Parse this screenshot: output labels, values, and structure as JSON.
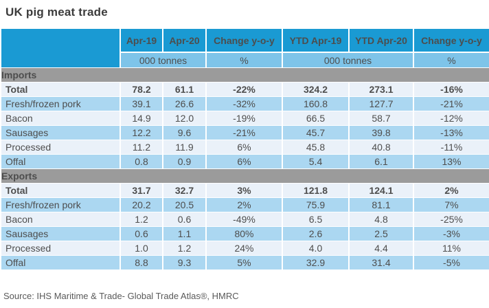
{
  "title": "UK pig meat trade",
  "source": "Source: IHS Maritime & Trade- Global Trade Atlas®, HMRC",
  "colors": {
    "header_blue": "#1A9AD3",
    "units_blue": "#7EC4E9",
    "row_blue": "#ABD7F1",
    "row_pale": "#EAF1F9",
    "section_gray": "#9B9B9B",
    "text_dark": "#4D4D4D"
  },
  "chart_data": {
    "type": "table",
    "title": "UK pig meat trade",
    "columns": [
      "Apr-19",
      "Apr-20",
      "Change y-o-y",
      "YTD Apr-19",
      "YTD Apr-20",
      "Change y-o-y"
    ],
    "units": [
      "000 tonnes",
      "%",
      "000 tonnes",
      "%"
    ],
    "sections": [
      {
        "name": "Imports",
        "rows": [
          {
            "label": "Total",
            "bold": true,
            "values": [
              "78.2",
              "61.1",
              "-22%",
              "324.2",
              "273.1",
              "-16%"
            ]
          },
          {
            "label": "Fresh/frozen pork",
            "values": [
              "39.1",
              "26.6",
              "-32%",
              "160.8",
              "127.7",
              "-21%"
            ]
          },
          {
            "label": "Bacon",
            "values": [
              "14.9",
              "12.0",
              "-19%",
              "66.5",
              "58.7",
              "-12%"
            ]
          },
          {
            "label": "Sausages",
            "values": [
              "12.2",
              "9.6",
              "-21%",
              "45.7",
              "39.8",
              "-13%"
            ]
          },
          {
            "label": "Processed",
            "values": [
              "11.2",
              "11.9",
              "6%",
              "45.8",
              "40.8",
              "-11%"
            ]
          },
          {
            "label": "Offal",
            "values": [
              "0.8",
              "0.9",
              "6%",
              "5.4",
              "6.1",
              "13%"
            ]
          }
        ]
      },
      {
        "name": "Exports",
        "rows": [
          {
            "label": "Total",
            "bold": true,
            "values": [
              "31.7",
              "32.7",
              "3%",
              "121.8",
              "124.1",
              "2%"
            ]
          },
          {
            "label": "Fresh/frozen pork",
            "values": [
              "20.2",
              "20.5",
              "2%",
              "75.9",
              "81.1",
              "7%"
            ]
          },
          {
            "label": "Bacon",
            "values": [
              "1.2",
              "0.6",
              "-49%",
              "6.5",
              "4.8",
              "-25%"
            ]
          },
          {
            "label": "Sausages",
            "values": [
              "0.6",
              "1.1",
              "80%",
              "2.6",
              "2.5",
              "-3%"
            ]
          },
          {
            "label": "Processed",
            "values": [
              "1.0",
              "1.2",
              "24%",
              "4.0",
              "4.4",
              "11%"
            ]
          },
          {
            "label": "Offal",
            "values": [
              "8.8",
              "9.3",
              "5%",
              "32.9",
              "31.4",
              "-5%"
            ]
          }
        ]
      }
    ]
  }
}
